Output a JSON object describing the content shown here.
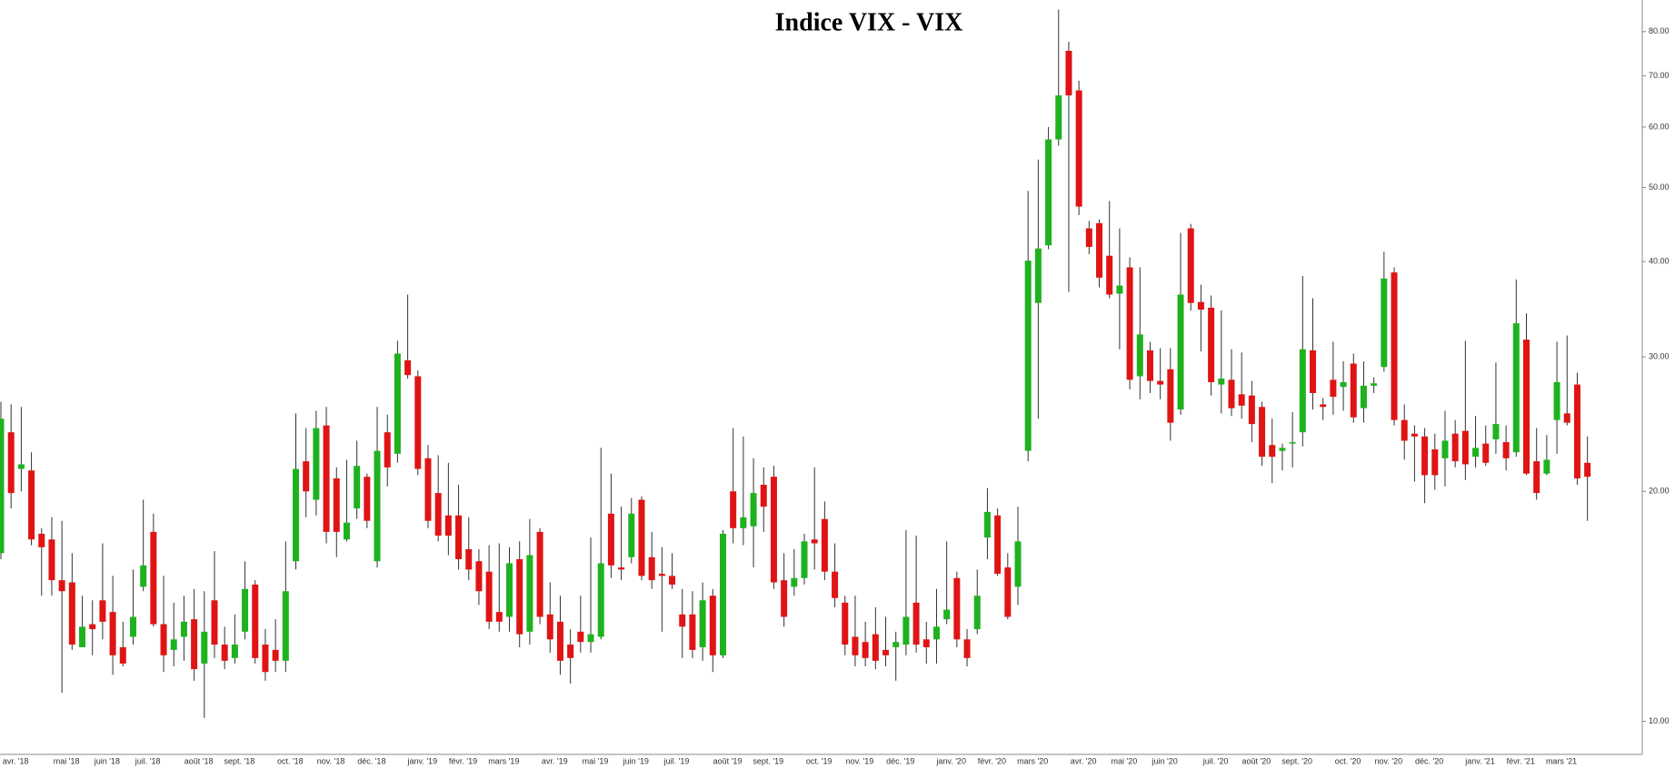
{
  "chart_data": {
    "type": "candlestick",
    "title": "Indice VIX - VIX",
    "log_scale": true,
    "grid": false,
    "up_color": "#1fb21f",
    "down_color": "#e01414",
    "ylim": [
      9.3,
      88
    ],
    "yticks": [
      {
        "value": 10,
        "label": "10.00"
      },
      {
        "value": 20,
        "label": "20.00"
      },
      {
        "value": 30,
        "label": "30.00"
      },
      {
        "value": 40,
        "label": "40.00"
      },
      {
        "value": 50,
        "label": "50.00"
      },
      {
        "value": 60,
        "label": "60.00"
      },
      {
        "value": 70,
        "label": "70.00"
      },
      {
        "value": 80,
        "label": "80.00"
      }
    ],
    "categories": [
      null,
      "avr. '18",
      null,
      null,
      null,
      null,
      "mai '18",
      null,
      null,
      null,
      "juin '18",
      null,
      null,
      null,
      "juil. '18",
      null,
      null,
      null,
      null,
      "août '18",
      null,
      null,
      null,
      "sept. '18",
      null,
      null,
      null,
      null,
      "oct. '18",
      null,
      null,
      null,
      "nov. '18",
      null,
      null,
      null,
      "déc. '18",
      null,
      null,
      null,
      null,
      "janv. '19",
      null,
      null,
      null,
      "févr. '19",
      null,
      null,
      null,
      "mars '19",
      null,
      null,
      null,
      null,
      "avr. '19",
      null,
      null,
      null,
      "mai '19",
      null,
      null,
      null,
      "juin '19",
      null,
      null,
      null,
      "juil. '19",
      null,
      null,
      null,
      null,
      "août '19",
      null,
      null,
      null,
      "sept. '19",
      null,
      null,
      null,
      null,
      "oct. '19",
      null,
      null,
      null,
      "nov. '19",
      null,
      null,
      null,
      "déc. '19",
      null,
      null,
      null,
      null,
      "janv. '20",
      null,
      null,
      null,
      "févr. '20",
      null,
      null,
      null,
      "mars '20",
      null,
      null,
      null,
      null,
      "avr. '20",
      null,
      null,
      null,
      "mai '20",
      null,
      null,
      null,
      "juin '20",
      null,
      null,
      null,
      null,
      "juil. '20",
      null,
      null,
      null,
      "août '20",
      null,
      null,
      null,
      "sept. '20",
      null,
      null,
      null,
      null,
      "oct. '20",
      null,
      null,
      null,
      "nov. '20",
      null,
      null,
      null,
      "déc. '20",
      null,
      null,
      null,
      null,
      "janv. '21",
      null,
      null,
      null,
      "févr. '21",
      null,
      null,
      null,
      "mars '21",
      null,
      null,
      null
    ],
    "open": [
      16.6,
      23.9,
      21.4,
      21.3,
      17.6,
      17.3,
      15.3,
      15.2,
      12.5,
      13.4,
      14.4,
      13.9,
      12.5,
      12.9,
      15.0,
      17.7,
      13.4,
      12.4,
      12.9,
      13.6,
      11.9,
      14.4,
      12.6,
      12.1,
      13.1,
      15.1,
      12.6,
      12.4,
      12.0,
      16.2,
      21.9,
      19.5,
      24.4,
      20.8,
      17.3,
      19.0,
      20.9,
      16.2,
      23.9,
      22.4,
      29.7,
      28.3,
      22.1,
      19.9,
      18.6,
      18.6,
      16.8,
      16.2,
      15.7,
      13.9,
      13.7,
      16.3,
      13.1,
      17.7,
      13.8,
      13.5,
      12.6,
      13.1,
      12.7,
      12.9,
      18.7,
      15.9,
      16.4,
      19.5,
      16.4,
      15.6,
      15.5,
      13.8,
      13.8,
      12.5,
      14.6,
      12.2,
      20.0,
      17.9,
      18.0,
      20.4,
      20.9,
      15.3,
      15.0,
      15.4,
      17.3,
      18.4,
      15.7,
      14.3,
      12.9,
      12.7,
      13.0,
      12.4,
      12.5,
      12.6,
      14.3,
      12.8,
      12.8,
      13.6,
      15.4,
      12.8,
      13.2,
      17.4,
      18.6,
      15.9,
      15.0,
      22.6,
      35.3,
      42.0,
      57.8,
      75.5,
      67.0,
      44.2,
      44.9,
      40.7,
      36.3,
      39.3,
      28.3,
      30.6,
      27.9,
      28.9,
      25.6,
      44.2,
      35.4,
      34.8,
      27.6,
      28.0,
      26.8,
      26.7,
      25.8,
      23.0,
      22.6,
      23.1,
      23.9,
      30.6,
      26.0,
      28.0,
      27.4,
      29.4,
      25.7,
      27.5,
      29.1,
      38.7,
      24.8,
      23.8,
      23.6,
      22.7,
      22.1,
      23.8,
      24.0,
      22.2,
      23.1,
      23.4,
      23.2,
      22.5,
      31.6,
      21.9,
      21.1,
      24.8,
      25.3,
      27.6,
      21.8
    ],
    "high": [
      26.2,
      26.0,
      25.8,
      22.5,
      17.9,
      18.5,
      18.3,
      16.6,
      14.6,
      14.4,
      17.1,
      15.5,
      13.5,
      15.8,
      19.5,
      18.7,
      15.5,
      14.3,
      14.6,
      14.9,
      14.8,
      16.7,
      13.3,
      13.8,
      16.2,
      15.3,
      13.2,
      13.6,
      17.2,
      25.3,
      24.2,
      25.5,
      25.8,
      21.5,
      22.0,
      23.3,
      21.1,
      25.8,
      25.2,
      31.5,
      36.2,
      28.8,
      23.0,
      22.3,
      21.8,
      20.4,
      18.5,
      16.8,
      17.0,
      17.1,
      16.9,
      17.2,
      18.4,
      17.9,
      15.2,
      14.6,
      13.2,
      14.6,
      17.4,
      22.8,
      21.1,
      19.1,
      19.6,
      19.7,
      17.7,
      16.9,
      16.6,
      14.9,
      14.8,
      15.2,
      14.9,
      17.8,
      24.2,
      23.6,
      22.1,
      21.5,
      21.6,
      16.6,
      16.8,
      17.6,
      21.5,
      19.4,
      17.1,
      14.6,
      14.6,
      13.5,
      14.1,
      13.7,
      13.1,
      17.8,
      17.5,
      13.5,
      14.9,
      17.2,
      15.7,
      13.2,
      15.8,
      20.2,
      19.0,
      16.6,
      19.1,
      49.5,
      54.4,
      60.0,
      85.5,
      77.6,
      69.0,
      45.2,
      45.4,
      48.0,
      44.2,
      40.5,
      39.3,
      31.4,
      30.8,
      30.8,
      43.6,
      44.8,
      37.3,
      36.1,
      34.5,
      30.7,
      30.4,
      27.9,
      26.2,
      24.9,
      23.1,
      25.4,
      38.3,
      35.8,
      26.5,
      31.4,
      29.6,
      30.3,
      29.6,
      28.2,
      41.2,
      39.3,
      26.0,
      24.4,
      24.2,
      23.8,
      25.5,
      24.8,
      31.5,
      25.1,
      24.4,
      29.5,
      24.4,
      37.9,
      34.2,
      24.2,
      23.7,
      31.4,
      32.0,
      28.6,
      23.6
    ],
    "low": [
      16.3,
      19.0,
      20.0,
      17.0,
      14.6,
      14.6,
      10.9,
      12.4,
      12.5,
      12.2,
      12.8,
      11.5,
      11.8,
      12.6,
      14.8,
      13.3,
      11.6,
      11.8,
      12.0,
      11.3,
      10.1,
      12.1,
      11.7,
      11.9,
      12.8,
      11.9,
      11.3,
      11.6,
      11.6,
      15.8,
      18.5,
      18.6,
      17.1,
      16.4,
      17.2,
      18.4,
      17.9,
      15.9,
      20.3,
      21.8,
      28.1,
      21.0,
      17.9,
      17.2,
      16.5,
      15.8,
      15.3,
      14.2,
      13.2,
      13.1,
      13.1,
      12.5,
      12.6,
      13.4,
      12.3,
      11.5,
      11.2,
      12.3,
      12.3,
      12.8,
      15.4,
      15.3,
      16.1,
      15.3,
      14.9,
      13.1,
      14.9,
      12.1,
      12.1,
      12.0,
      11.6,
      12.1,
      17.1,
      17.0,
      15.9,
      17.7,
      14.9,
      13.3,
      14.6,
      15.1,
      15.8,
      15.3,
      14.1,
      12.2,
      11.8,
      11.8,
      11.7,
      11.8,
      11.3,
      12.2,
      12.3,
      11.9,
      11.9,
      13.4,
      12.5,
      11.8,
      13.0,
      16.3,
      15.5,
      13.6,
      14.2,
      21.9,
      24.9,
      41.5,
      56.7,
      36.5,
      46.0,
      40.9,
      37.0,
      35.8,
      30.7,
      27.2,
      26.4,
      26.9,
      26.4,
      23.3,
      25.2,
      34.5,
      30.5,
      26.7,
      25.3,
      25.1,
      24.9,
      23.2,
      21.6,
      20.5,
      21.3,
      21.5,
      22.9,
      25.6,
      24.8,
      25.2,
      25.5,
      24.6,
      24.6,
      26.9,
      28.7,
      24.4,
      22.0,
      20.6,
      19.3,
      20.1,
      20.3,
      21.5,
      20.7,
      21.5,
      21.6,
      22.4,
      21.3,
      22.2,
      21.0,
      19.5,
      21.0,
      22.4,
      24.4,
      20.4,
      18.3
    ],
    "close": [
      24.9,
      19.9,
      21.7,
      17.3,
      16.9,
      15.3,
      14.8,
      12.6,
      13.3,
      13.2,
      13.5,
      12.2,
      11.9,
      13.7,
      16.0,
      13.4,
      12.2,
      12.8,
      13.5,
      11.7,
      13.1,
      12.6,
      12.0,
      12.6,
      14.9,
      12.1,
      11.6,
      12.0,
      14.8,
      21.4,
      20.0,
      24.2,
      17.7,
      17.7,
      18.2,
      21.6,
      18.3,
      22.6,
      21.5,
      30.3,
      28.4,
      21.4,
      18.3,
      17.5,
      17.5,
      16.3,
      15.8,
      14.8,
      13.5,
      13.5,
      16.1,
      13.0,
      16.5,
      13.7,
      12.8,
      12.0,
      12.1,
      12.7,
      13.0,
      16.1,
      16.0,
      15.8,
      18.7,
      15.5,
      15.3,
      15.5,
      15.1,
      13.3,
      12.4,
      14.4,
      12.2,
      17.6,
      17.9,
      18.5,
      19.9,
      19.1,
      15.2,
      13.7,
      15.4,
      17.2,
      17.1,
      15.7,
      14.5,
      12.6,
      12.2,
      12.1,
      12.0,
      12.2,
      12.7,
      13.7,
      12.6,
      12.5,
      13.3,
      14.0,
      12.8,
      12.1,
      14.6,
      18.8,
      15.6,
      13.7,
      17.2,
      40.1,
      41.6,
      57.8,
      66.0,
      66.0,
      47.2,
      41.8,
      38.1,
      36.2,
      37.2,
      28.0,
      32.1,
      27.9,
      27.6,
      24.6,
      36.2,
      35.3,
      34.6,
      27.8,
      28.1,
      25.7,
      25.9,
      24.5,
      22.2,
      22.2,
      22.8,
      23.2,
      30.7,
      26.9,
      25.8,
      26.6,
      27.8,
      25.0,
      27.5,
      27.7,
      38.0,
      24.8,
      23.3,
      23.6,
      21.0,
      21.0,
      23.3,
      21.9,
      21.7,
      22.8,
      21.8,
      24.5,
      22.1,
      33.2,
      21.1,
      19.9,
      22.0,
      27.8,
      24.6,
      20.8,
      20.9
    ]
  }
}
